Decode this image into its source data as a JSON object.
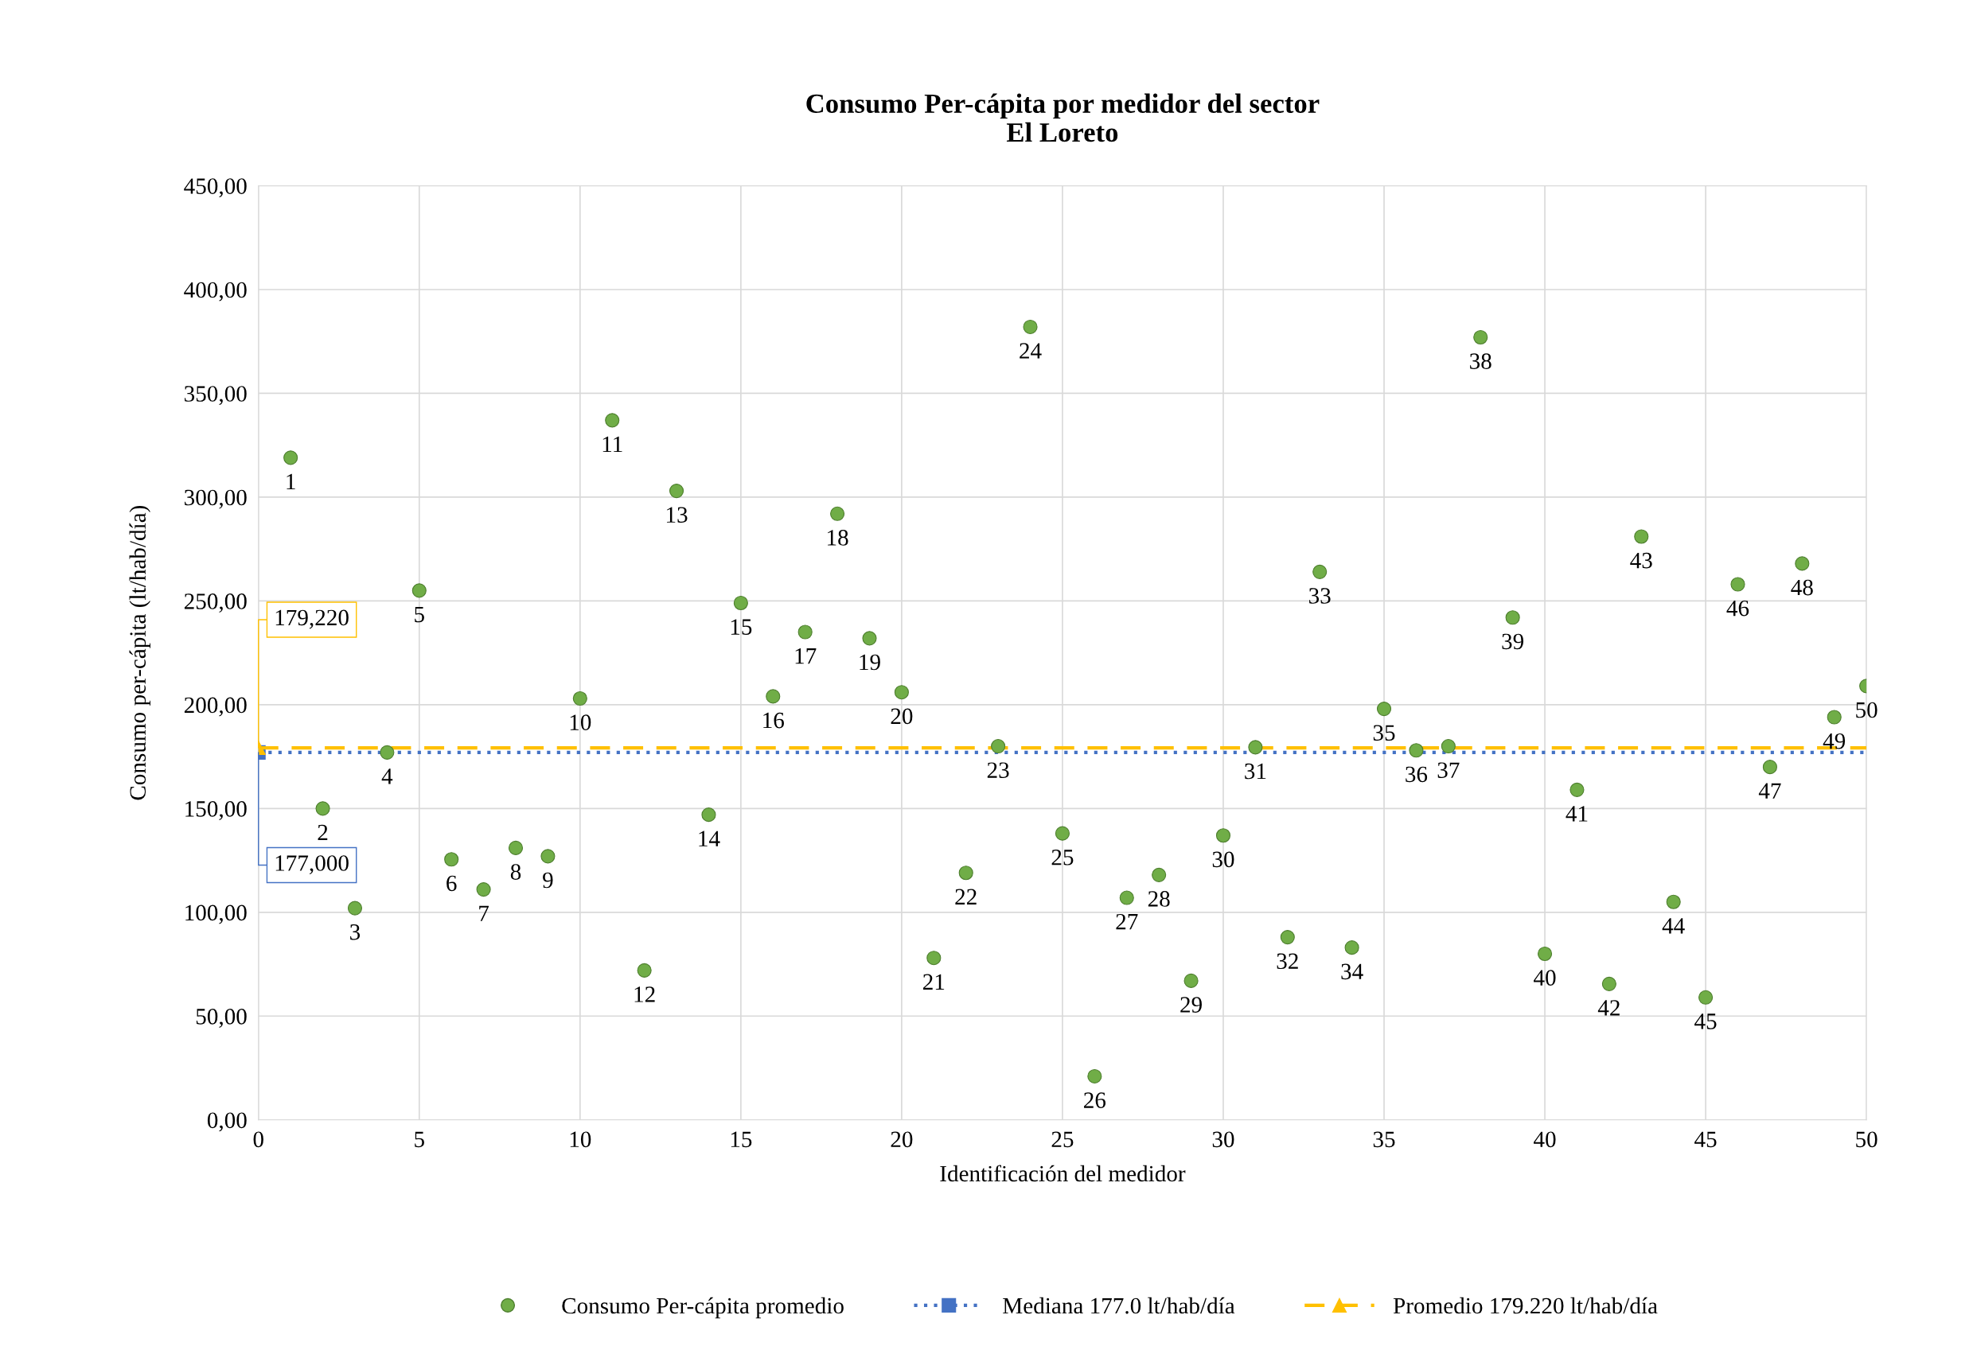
{
  "chart_data": {
    "type": "scatter",
    "title": "Consumo Per-cápita por medidor del sector\nEl Loreto",
    "xlabel": "Identificación del medidor",
    "ylabel": "Consumo per-cápita (lt/hab/día)",
    "xlim": [
      0,
      50
    ],
    "xticks": [
      0,
      5,
      10,
      15,
      20,
      25,
      30,
      35,
      40,
      45,
      50
    ],
    "ylim": [
      0,
      450
    ],
    "yticks": [
      {
        "value": 0,
        "label": "0,00"
      },
      {
        "value": 50,
        "label": "50,00"
      },
      {
        "value": 100,
        "label": "100,00"
      },
      {
        "value": 150,
        "label": "150,00"
      },
      {
        "value": 200,
        "label": "200,00"
      },
      {
        "value": 250,
        "label": "250,00"
      },
      {
        "value": 300,
        "label": "300,00"
      },
      {
        "value": 350,
        "label": "350,00"
      },
      {
        "value": 400,
        "label": "400,00"
      },
      {
        "value": 450,
        "label": "450,00"
      }
    ],
    "grid": true,
    "legend": "bottom",
    "series": [
      {
        "name": "Consumo Per-cápita promedio",
        "color": "#70ad47",
        "marker": "circle",
        "x": [
          1,
          2,
          3,
          4,
          5,
          6,
          7,
          8,
          9,
          10,
          11,
          12,
          13,
          14,
          15,
          16,
          17,
          18,
          19,
          20,
          21,
          22,
          23,
          24,
          25,
          26,
          27,
          28,
          29,
          30,
          31,
          32,
          33,
          34,
          35,
          36,
          37,
          38,
          39,
          40,
          41,
          42,
          43,
          44,
          45,
          46,
          47,
          48,
          49,
          50
        ],
        "values": [
          319,
          150,
          102,
          177,
          255,
          125.5,
          111,
          131,
          127,
          203,
          337,
          72,
          303,
          147,
          249,
          204,
          235,
          292,
          232,
          206,
          78,
          119,
          180,
          382,
          138,
          21,
          107,
          118,
          67,
          137,
          179.5,
          88,
          264,
          83,
          198,
          178,
          180,
          377,
          242,
          80,
          159,
          65.5,
          281,
          105,
          59,
          258,
          170,
          268,
          194,
          209
        ]
      },
      {
        "name": "Mediana 177.0 lt/hab/día",
        "type": "line",
        "color": "#4472c4",
        "marker": "square",
        "line_style": "dotted",
        "x": [
          0,
          50
        ],
        "values": [
          177,
          177
        ]
      },
      {
        "name": "Promedio 179.220 lt/hab/día",
        "type": "line",
        "color": "#ffc000",
        "marker": "triangle",
        "line_style": "dashed",
        "x": [
          0,
          50
        ],
        "values": [
          179.22,
          179.22
        ]
      }
    ],
    "annotations": [
      "179,220",
      "177,000",
      {
        "text": "1",
        "x": 1,
        "y": 319
      },
      {
        "text": "2",
        "x": 2,
        "y": 150
      },
      {
        "text": "3",
        "x": 3,
        "y": 102
      },
      {
        "text": "4",
        "x": 4,
        "y": 177
      },
      {
        "text": "5",
        "x": 5,
        "y": 255
      },
      {
        "text": "6",
        "x": 6,
        "y": 125.5
      },
      {
        "text": "7",
        "x": 7,
        "y": 111
      },
      {
        "text": "8",
        "x": 8,
        "y": 131
      },
      {
        "text": "9",
        "x": 9,
        "y": 127
      },
      {
        "text": "10",
        "x": 10,
        "y": 203
      },
      {
        "text": "11",
        "x": 11,
        "y": 337
      },
      {
        "text": "12",
        "x": 12,
        "y": 72
      },
      {
        "text": "13",
        "x": 13,
        "y": 303
      },
      {
        "text": "14",
        "x": 14,
        "y": 147
      },
      {
        "text": "15",
        "x": 15,
        "y": 249
      },
      {
        "text": "16",
        "x": 16,
        "y": 204
      },
      {
        "text": "17",
        "x": 17,
        "y": 235
      },
      {
        "text": "18",
        "x": 18,
        "y": 292
      },
      {
        "text": "19",
        "x": 19,
        "y": 232
      },
      {
        "text": "20",
        "x": 20,
        "y": 206
      },
      {
        "text": "21",
        "x": 21,
        "y": 78
      },
      {
        "text": "22",
        "x": 22,
        "y": 119
      },
      {
        "text": "23",
        "x": 23,
        "y": 180
      },
      {
        "text": "24",
        "x": 24,
        "y": 382
      },
      {
        "text": "25",
        "x": 25,
        "y": 138
      },
      {
        "text": "26",
        "x": 26,
        "y": 21
      },
      {
        "text": "27",
        "x": 27,
        "y": 107
      },
      {
        "text": "28",
        "x": 28,
        "y": 118
      },
      {
        "text": "29",
        "x": 29,
        "y": 67
      },
      {
        "text": "30",
        "x": 30,
        "y": 137
      },
      {
        "text": "31",
        "x": 31,
        "y": 179.5
      },
      {
        "text": "32",
        "x": 32,
        "y": 88
      },
      {
        "text": "33",
        "x": 33,
        "y": 264
      },
      {
        "text": "34",
        "x": 34,
        "y": 83
      },
      {
        "text": "35",
        "x": 35,
        "y": 198
      },
      {
        "text": "36",
        "x": 36,
        "y": 178
      },
      {
        "text": "37",
        "x": 37,
        "y": 180
      },
      {
        "text": "38",
        "x": 38,
        "y": 377
      },
      {
        "text": "39",
        "x": 39,
        "y": 242
      },
      {
        "text": "40",
        "x": 40,
        "y": 80
      },
      {
        "text": "41",
        "x": 41,
        "y": 159
      },
      {
        "text": "42",
        "x": 42,
        "y": 65.5
      },
      {
        "text": "43",
        "x": 43,
        "y": 281
      },
      {
        "text": "44",
        "x": 44,
        "y": 105
      },
      {
        "text": "45",
        "x": 45,
        "y": 59
      },
      {
        "text": "46",
        "x": 46,
        "y": 258
      },
      {
        "text": "47",
        "x": 47,
        "y": 170
      },
      {
        "text": "48",
        "x": 48,
        "y": 268
      },
      {
        "text": "49",
        "x": 49,
        "y": 194
      },
      {
        "text": "50",
        "x": 50,
        "y": 209
      }
    ]
  }
}
